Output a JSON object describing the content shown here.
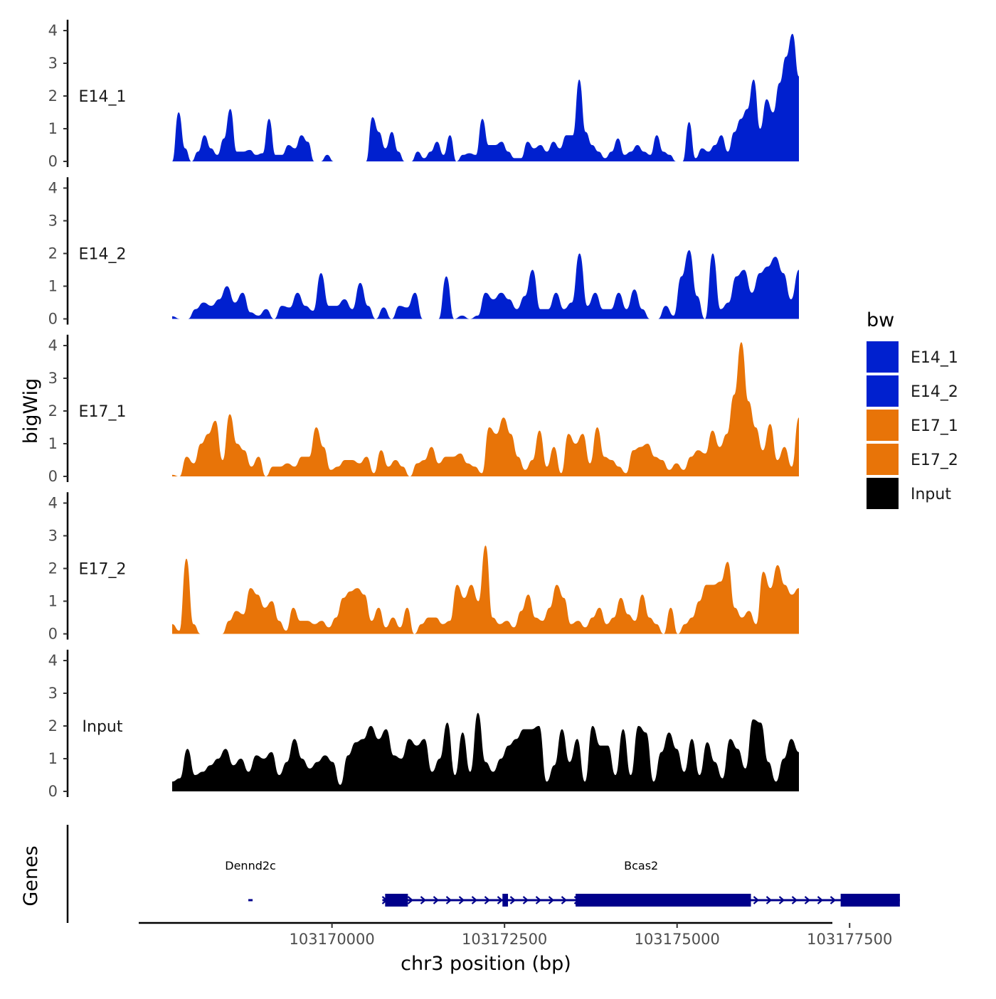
{
  "chart_data": {
    "type": "area",
    "xlabel": "chr3 position (bp)",
    "ylabel": "bigWig",
    "genes_label": "Genes",
    "legend_title": "bw",
    "xlim": [
      103167200,
      103177250
    ],
    "x_data_range": [
      103168788,
      103178228
    ],
    "x_ticks": [
      {
        "value": 103170000,
        "label": "103170000"
      },
      {
        "value": 103172500,
        "label": "103172500"
      },
      {
        "value": 103175000,
        "label": "103175000"
      },
      {
        "value": 103177500,
        "label": "103177500"
      }
    ],
    "ylim": [
      0,
      4.2
    ],
    "y_ticks": [
      {
        "value": 0,
        "label": "0"
      },
      {
        "value": 1,
        "label": "1"
      },
      {
        "value": 2,
        "label": "2"
      },
      {
        "value": 3,
        "label": "3"
      },
      {
        "value": 4,
        "label": "4"
      }
    ],
    "legend": [
      {
        "name": "E14_1",
        "color": "#0020CF"
      },
      {
        "name": "E14_2",
        "color": "#0020CF"
      },
      {
        "name": "E17_1",
        "color": "#E87408"
      },
      {
        "name": "E17_2",
        "color": "#E87408"
      },
      {
        "name": "Input",
        "color": "#000000"
      }
    ],
    "tracks": [
      {
        "name": "E14_1",
        "color": "#0020CF",
        "values": [
          0,
          1.5,
          0.4,
          0,
          0.3,
          0.8,
          0.4,
          0.2,
          0.7,
          1.6,
          0.3,
          0.3,
          0.35,
          0.2,
          0.25,
          1.3,
          0.2,
          0.2,
          0.5,
          0.4,
          0.8,
          0.6,
          0,
          0,
          0.2,
          0,
          0,
          0,
          0,
          0,
          0,
          1.35,
          0.9,
          0.4,
          0.9,
          0.3,
          0,
          0,
          0.3,
          0.1,
          0.3,
          0.6,
          0.2,
          0.8,
          0,
          0.2,
          0.25,
          0.2,
          1.3,
          0.5,
          0.5,
          0.6,
          0.3,
          0.1,
          0.1,
          0.6,
          0.4,
          0.5,
          0.3,
          0.6,
          0.4,
          0.8,
          0.8,
          2.5,
          0.9,
          0.5,
          0.3,
          0.1,
          0.3,
          0.7,
          0.2,
          0.3,
          0.5,
          0.3,
          0.2,
          0.8,
          0.3,
          0.2,
          0,
          0,
          1.2,
          0.1,
          0.4,
          0.3,
          0.5,
          0.8,
          0.3,
          0.9,
          1.3,
          1.6,
          2.5,
          1,
          1.9,
          1.5,
          2.4,
          3.2,
          3.9,
          2.6
        ]
      },
      {
        "name": "E14_2",
        "color": "#0020CF",
        "values": [
          0.08,
          0,
          0,
          0.3,
          0.5,
          0.4,
          0.6,
          1,
          0.5,
          0.8,
          0.2,
          0.1,
          0.3,
          0,
          0.4,
          0.35,
          0.8,
          0.4,
          0.25,
          1.4,
          0.4,
          0.4,
          0.6,
          0.3,
          1.1,
          0.4,
          0,
          0.35,
          0,
          0.4,
          0.35,
          0.8,
          0,
          0,
          0,
          1.3,
          0,
          0.1,
          0,
          0.1,
          0.8,
          0.6,
          0.8,
          0.6,
          0.3,
          0.7,
          1.5,
          0.3,
          0.3,
          0.8,
          0.3,
          0.5,
          2,
          0.4,
          0.8,
          0.3,
          0.3,
          0.8,
          0.3,
          0.9,
          0.3,
          0,
          0,
          0.4,
          0.1,
          1.3,
          2.1,
          0.7,
          0,
          2,
          0.3,
          0.5,
          1.3,
          1.5,
          0.8,
          1.4,
          1.6,
          1.9,
          1.4,
          0.6,
          1.5
        ]
      },
      {
        "name": "E17_1",
        "color": "#E87408",
        "values": [
          0.05,
          0,
          0.6,
          0.4,
          1,
          1.3,
          1.7,
          0.5,
          1.9,
          1,
          0.8,
          0.3,
          0.6,
          0,
          0.3,
          0.3,
          0.4,
          0.3,
          0.6,
          0.6,
          1.5,
          0.9,
          0.2,
          0.3,
          0.5,
          0.5,
          0.4,
          0.6,
          0.1,
          0.8,
          0.3,
          0.5,
          0.3,
          0,
          0.4,
          0.5,
          0.9,
          0.4,
          0.6,
          0.6,
          0.7,
          0.4,
          0.3,
          0.1,
          1.5,
          1.3,
          1.8,
          1.3,
          0.6,
          0.2,
          0.5,
          1.4,
          0.3,
          0.9,
          0.1,
          1.3,
          1,
          1.3,
          0.4,
          1.5,
          0.6,
          0.5,
          0.3,
          0.1,
          0.8,
          0.9,
          1,
          0.6,
          0.5,
          0.2,
          0.4,
          0.2,
          0.6,
          0.8,
          0.7,
          1.4,
          0.9,
          1.3,
          2.5,
          4.1,
          2.3,
          1.5,
          0.8,
          1.6,
          0.5,
          0.9,
          0.3,
          1.8
        ]
      },
      {
        "name": "E17_2",
        "color": "#E87408",
        "values": [
          0.3,
          0.1,
          2.3,
          0.3,
          0,
          0,
          0,
          0,
          0.4,
          0.7,
          0.6,
          1.4,
          1.2,
          0.8,
          1,
          0.4,
          0.1,
          0.8,
          0.4,
          0.4,
          0.3,
          0.4,
          0.2,
          0.5,
          1.1,
          1.3,
          1.4,
          1.2,
          0.4,
          0.8,
          0.2,
          0.5,
          0.2,
          0.8,
          0,
          0.3,
          0.5,
          0.5,
          0.3,
          0.4,
          1.5,
          1.1,
          1.5,
          1,
          2.7,
          0.5,
          0.3,
          0.4,
          0.2,
          0.7,
          1.2,
          0.5,
          0.4,
          0.8,
          1.5,
          1.1,
          0.3,
          0.4,
          0.2,
          0.5,
          0.8,
          0.3,
          0.5,
          1.1,
          0.6,
          0.4,
          1.2,
          0.5,
          0.3,
          0,
          0.8,
          0,
          0.3,
          0.5,
          1,
          1.5,
          1.5,
          1.6,
          2.2,
          0.8,
          0.5,
          0.7,
          0.3,
          1.9,
          1.4,
          2.1,
          1.5,
          1.2,
          1.4
        ]
      },
      {
        "name": "Input",
        "color": "#000000",
        "values": [
          0.3,
          0.4,
          1.3,
          0.5,
          0.6,
          0.8,
          1,
          1.3,
          0.8,
          1,
          0.6,
          1.1,
          1,
          1.2,
          0.5,
          0.9,
          1.6,
          1,
          0.7,
          0.9,
          1.1,
          0.9,
          0.2,
          1.1,
          1.5,
          1.6,
          2,
          1.6,
          1.9,
          1.1,
          1,
          1.6,
          1.4,
          1.6,
          0.6,
          1,
          2.1,
          0.5,
          1.8,
          0.6,
          2.4,
          0.9,
          0.6,
          1,
          1.4,
          1.6,
          1.9,
          1.9,
          2,
          0.3,
          0.8,
          1.9,
          0.9,
          1.6,
          0.3,
          2,
          1.4,
          1.4,
          0.5,
          1.9,
          0.5,
          2,
          1.8,
          0.3,
          1.2,
          1.8,
          1.3,
          0.6,
          1.6,
          0.5,
          1.5,
          0.9,
          0.4,
          1.6,
          1.3,
          0.7,
          2.2,
          2.1,
          0.9,
          0.3,
          1,
          1.6,
          1.2
        ]
      }
    ],
    "genes": [
      {
        "name": "Dennd2c",
        "start": 103168788,
        "end": 103168850,
        "strand": "+",
        "color": "#00008B",
        "exons": []
      },
      {
        "name": "Bcas2",
        "start": 103170730,
        "end": 103178228,
        "strand": "+",
        "color": "#00008B",
        "exons": [
          [
            103170770,
            103171100
          ],
          [
            103172470,
            103172550
          ],
          [
            103173530,
            103176070
          ],
          [
            103177370,
            103178228
          ]
        ]
      }
    ]
  }
}
